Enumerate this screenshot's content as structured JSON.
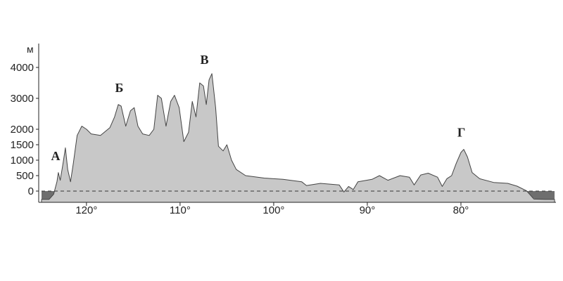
{
  "chart_data": {
    "type": "area",
    "y_unit": "м",
    "y_ticks": [
      {
        "value": 0,
        "label": "0"
      },
      {
        "value": 500,
        "label": "500"
      },
      {
        "value": 1000,
        "label": "1000"
      },
      {
        "value": 1500,
        "label": "1500"
      },
      {
        "value": 2000,
        "label": "2000"
      },
      {
        "value": 3000,
        "label": "3000"
      },
      {
        "value": 4000,
        "label": "4000"
      }
    ],
    "x_ticks": [
      {
        "value": 120,
        "label": "120°"
      },
      {
        "value": 110,
        "label": "110°"
      },
      {
        "value": 100,
        "label": "100°"
      },
      {
        "value": 90,
        "label": "90°"
      },
      {
        "value": 80,
        "label": "80°"
      }
    ],
    "xlim": [
      125,
      69
    ],
    "ylim": [
      -350,
      4450
    ],
    "sea_level": 0,
    "colors": {
      "land": "#c8c8c8",
      "sea": "#6e6e6e",
      "outline": "#444444"
    },
    "points": [
      {
        "name": "А",
        "lon": 123.0,
        "elev": 500
      },
      {
        "name": "Б",
        "lon": 116.5,
        "elev": 2800
      },
      {
        "name": "В",
        "lon": 106.8,
        "elev": 3800
      },
      {
        "name": "Г",
        "lon": 79.8,
        "elev": 1350
      }
    ],
    "profile": [
      [
        124.8,
        -270
      ],
      [
        124.0,
        -270
      ],
      [
        123.5,
        -100
      ],
      [
        123.35,
        80
      ],
      [
        123.15,
        300
      ],
      [
        123.0,
        600
      ],
      [
        122.8,
        350
      ],
      [
        122.5,
        900
      ],
      [
        122.25,
        1400
      ],
      [
        122.0,
        700
      ],
      [
        121.7,
        300
      ],
      [
        121.4,
        900
      ],
      [
        121.0,
        1800
      ],
      [
        120.5,
        2100
      ],
      [
        120.0,
        2000
      ],
      [
        119.5,
        1850
      ],
      [
        118.5,
        1800
      ],
      [
        117.5,
        2050
      ],
      [
        117.0,
        2400
      ],
      [
        116.6,
        2800
      ],
      [
        116.3,
        2750
      ],
      [
        115.8,
        2100
      ],
      [
        115.3,
        2600
      ],
      [
        114.9,
        2700
      ],
      [
        114.5,
        2100
      ],
      [
        114.0,
        1850
      ],
      [
        113.3,
        1800
      ],
      [
        112.8,
        2000
      ],
      [
        112.4,
        3100
      ],
      [
        112.0,
        3000
      ],
      [
        111.5,
        2100
      ],
      [
        111.0,
        2900
      ],
      [
        110.6,
        3100
      ],
      [
        110.1,
        2700
      ],
      [
        109.6,
        1600
      ],
      [
        109.1,
        1900
      ],
      [
        108.7,
        2900
      ],
      [
        108.3,
        2400
      ],
      [
        107.9,
        3500
      ],
      [
        107.5,
        3400
      ],
      [
        107.2,
        2800
      ],
      [
        106.9,
        3600
      ],
      [
        106.6,
        3800
      ],
      [
        106.2,
        2700
      ],
      [
        105.9,
        1450
      ],
      [
        105.4,
        1300
      ],
      [
        105.0,
        1500
      ],
      [
        104.5,
        1000
      ],
      [
        104.0,
        700
      ],
      [
        103.0,
        500
      ],
      [
        101.0,
        420
      ],
      [
        99.0,
        380
      ],
      [
        97.0,
        300
      ],
      [
        96.5,
        180
      ],
      [
        95.0,
        250
      ],
      [
        93.0,
        200
      ],
      [
        92.5,
        -30
      ],
      [
        92.0,
        150
      ],
      [
        91.5,
        50
      ],
      [
        91.0,
        300
      ],
      [
        89.5,
        380
      ],
      [
        88.7,
        500
      ],
      [
        87.8,
        350
      ],
      [
        86.5,
        500
      ],
      [
        85.5,
        450
      ],
      [
        85.0,
        200
      ],
      [
        84.3,
        520
      ],
      [
        83.5,
        580
      ],
      [
        82.5,
        450
      ],
      [
        82.0,
        150
      ],
      [
        81.5,
        400
      ],
      [
        81.0,
        500
      ],
      [
        80.5,
        900
      ],
      [
        80.0,
        1250
      ],
      [
        79.7,
        1350
      ],
      [
        79.3,
        1100
      ],
      [
        78.8,
        600
      ],
      [
        78.0,
        400
      ],
      [
        76.5,
        280
      ],
      [
        75.0,
        250
      ],
      [
        74.0,
        160
      ],
      [
        73.0,
        10
      ],
      [
        72.2,
        -260
      ],
      [
        71.0,
        -270
      ],
      [
        70.0,
        -270
      ]
    ]
  }
}
